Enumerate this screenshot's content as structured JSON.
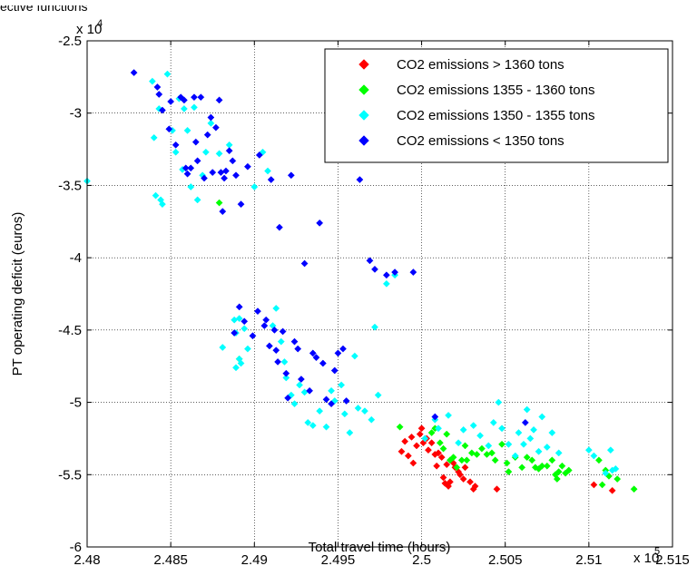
{
  "caption_fragment": "ective functions",
  "chart_data": {
    "type": "scatter",
    "title": "",
    "xlabel": "Total travel time (hours)",
    "ylabel": "PT operating deficit (euros)",
    "x_multiplier_label": "x 10",
    "x_multiplier_exp": "5",
    "y_multiplier_label": "x 10",
    "y_multiplier_exp": "4",
    "xlim": [
      2.48,
      2.515
    ],
    "ylim": [
      -6,
      -2.5
    ],
    "x_ticks": [
      2.48,
      2.485,
      2.49,
      2.495,
      2.5,
      2.505,
      2.51,
      2.515
    ],
    "x_tick_labels": [
      "2.48",
      "2.485",
      "2.49",
      "2.495",
      "2.5",
      "2.505",
      "2.51",
      "2.515"
    ],
    "y_ticks": [
      -6,
      -5.5,
      -5,
      -4.5,
      -4,
      -3.5,
      -3,
      -2.5
    ],
    "y_tick_labels": [
      "-6",
      "-5.5",
      "-5",
      "-4.5",
      "-4",
      "-3.5",
      "-3",
      "-2.5"
    ],
    "grid": true,
    "legend_position": "top-right",
    "series": [
      {
        "name": "CO2 emissions > 1360 tons",
        "color": "#ff0000",
        "points": [
          [
            2.4988,
            -5.34
          ],
          [
            2.499,
            -5.27
          ],
          [
            2.4992,
            -5.37
          ],
          [
            2.4994,
            -5.24
          ],
          [
            2.4995,
            -5.42
          ],
          [
            2.4997,
            -5.3
          ],
          [
            2.4999,
            -5.22
          ],
          [
            2.5,
            -5.18
          ],
          [
            2.5001,
            -5.28
          ],
          [
            2.5003,
            -5.25
          ],
          [
            2.5004,
            -5.33
          ],
          [
            2.5006,
            -5.28
          ],
          [
            2.5008,
            -5.36
          ],
          [
            2.5009,
            -5.44
          ],
          [
            2.501,
            -5.35
          ],
          [
            2.5012,
            -5.38
          ],
          [
            2.5013,
            -5.52
          ],
          [
            2.5014,
            -5.56
          ],
          [
            2.5015,
            -5.43
          ],
          [
            2.5016,
            -5.58
          ],
          [
            2.5017,
            -5.55
          ],
          [
            2.5019,
            -5.42
          ],
          [
            2.502,
            -5.45
          ],
          [
            2.5022,
            -5.48
          ],
          [
            2.5023,
            -5.5
          ],
          [
            2.5025,
            -5.53
          ],
          [
            2.5026,
            -5.45
          ],
          [
            2.5029,
            -5.55
          ],
          [
            2.5031,
            -5.6
          ],
          [
            2.5032,
            -5.58
          ],
          [
            2.5045,
            -5.6
          ],
          [
            2.5103,
            -5.57
          ],
          [
            2.5114,
            -5.61
          ]
        ]
      },
      {
        "name": "CO2 emissions 1355 - 1360 tons",
        "color": "#00ff00",
        "points": [
          [
            2.4879,
            -3.62
          ],
          [
            2.4891,
            -4.7
          ],
          [
            2.4987,
            -5.17
          ],
          [
            2.5006,
            -5.21
          ],
          [
            2.5008,
            -5.18
          ],
          [
            2.5011,
            -5.28
          ],
          [
            2.5013,
            -5.32
          ],
          [
            2.5015,
            -5.22
          ],
          [
            2.5017,
            -5.4
          ],
          [
            2.5019,
            -5.38
          ],
          [
            2.5021,
            -5.45
          ],
          [
            2.5024,
            -5.4
          ],
          [
            2.5026,
            -5.3
          ],
          [
            2.5027,
            -5.4
          ],
          [
            2.503,
            -5.35
          ],
          [
            2.5033,
            -5.36
          ],
          [
            2.5036,
            -5.32
          ],
          [
            2.5039,
            -5.36
          ],
          [
            2.5042,
            -5.35
          ],
          [
            2.5044,
            -5.4
          ],
          [
            2.5048,
            -5.29
          ],
          [
            2.5051,
            -5.42
          ],
          [
            2.5052,
            -5.48
          ],
          [
            2.5056,
            -5.38
          ],
          [
            2.506,
            -5.45
          ],
          [
            2.5063,
            -5.38
          ],
          [
            2.5066,
            -5.4
          ],
          [
            2.5068,
            -5.45
          ],
          [
            2.507,
            -5.46
          ],
          [
            2.5072,
            -5.44
          ],
          [
            2.5075,
            -5.44
          ],
          [
            2.5078,
            -5.4
          ],
          [
            2.508,
            -5.5
          ],
          [
            2.5081,
            -5.53
          ],
          [
            2.5082,
            -5.48
          ],
          [
            2.5084,
            -5.44
          ],
          [
            2.5086,
            -5.49
          ],
          [
            2.5088,
            -5.47
          ],
          [
            2.5106,
            -5.4
          ],
          [
            2.5108,
            -5.57
          ],
          [
            2.511,
            -5.47
          ],
          [
            2.5112,
            -5.51
          ],
          [
            2.5117,
            -5.53
          ],
          [
            2.5127,
            -5.6
          ]
        ]
      },
      {
        "name": "CO2 emissions 1350 - 1355 tons",
        "color": "#00ffff",
        "points": [
          [
            2.48,
            -3.47
          ],
          [
            2.4839,
            -2.78
          ],
          [
            2.484,
            -3.17
          ],
          [
            2.4841,
            -3.57
          ],
          [
            2.4843,
            -2.97
          ],
          [
            2.4844,
            -3.6
          ],
          [
            2.4845,
            -3.63
          ],
          [
            2.4848,
            -2.73
          ],
          [
            2.4851,
            -3.12
          ],
          [
            2.4853,
            -3.27
          ],
          [
            2.4855,
            -2.9
          ],
          [
            2.4857,
            -3.39
          ],
          [
            2.4858,
            -2.97
          ],
          [
            2.486,
            -3.12
          ],
          [
            2.4862,
            -3.51
          ],
          [
            2.4864,
            -2.96
          ],
          [
            2.4866,
            -3.6
          ],
          [
            2.4869,
            -3.43
          ],
          [
            2.4871,
            -3.27
          ],
          [
            2.4874,
            -3.07
          ],
          [
            2.4879,
            -3.28
          ],
          [
            2.4881,
            -4.62
          ],
          [
            2.4885,
            -3.22
          ],
          [
            2.4888,
            -4.43
          ],
          [
            2.4889,
            -4.52
          ],
          [
            2.4891,
            -4.42
          ],
          [
            2.4892,
            -4.73
          ],
          [
            2.4894,
            -4.49
          ],
          [
            2.4896,
            -4.63
          ],
          [
            2.49,
            -3.51
          ],
          [
            2.4905,
            -3.27
          ],
          [
            2.4908,
            -3.4
          ],
          [
            2.4911,
            -4.47
          ],
          [
            2.4913,
            -4.35
          ],
          [
            2.4916,
            -4.58
          ],
          [
            2.4918,
            -4.72
          ],
          [
            2.4919,
            -4.83
          ],
          [
            2.4922,
            -4.95
          ],
          [
            2.4924,
            -5.01
          ],
          [
            2.4927,
            -4.88
          ],
          [
            2.493,
            -4.93
          ],
          [
            2.4932,
            -5.14
          ],
          [
            2.4935,
            -5.16
          ],
          [
            2.4939,
            -5.06
          ],
          [
            2.4943,
            -5.17
          ],
          [
            2.4946,
            -4.92
          ],
          [
            2.4948,
            -4.99
          ],
          [
            2.4952,
            -4.88
          ],
          [
            2.4954,
            -5.08
          ],
          [
            2.4957,
            -5.21
          ],
          [
            2.496,
            -4.68
          ],
          [
            2.4962,
            -5.04
          ],
          [
            2.4966,
            -5.06
          ],
          [
            2.497,
            -5.12
          ],
          [
            2.4974,
            -4.95
          ],
          [
            2.4979,
            -4.18
          ],
          [
            2.4984,
            -4.12
          ],
          [
            2.5002,
            -5.25
          ],
          [
            2.5008,
            -5.12
          ],
          [
            2.501,
            -5.18
          ],
          [
            2.5016,
            -5.09
          ],
          [
            2.5022,
            -5.28
          ],
          [
            2.5025,
            -5.19
          ],
          [
            2.5031,
            -5.16
          ],
          [
            2.5035,
            -5.23
          ],
          [
            2.504,
            -5.3
          ],
          [
            2.5043,
            -5.14
          ],
          [
            2.5046,
            -5.0
          ],
          [
            2.5048,
            -5.18
          ],
          [
            2.5052,
            -5.29
          ],
          [
            2.5056,
            -5.37
          ],
          [
            2.5058,
            -5.21
          ],
          [
            2.5061,
            -5.29
          ],
          [
            2.5063,
            -5.05
          ],
          [
            2.5065,
            -5.25
          ],
          [
            2.5067,
            -5.19
          ],
          [
            2.507,
            -5.34
          ],
          [
            2.5072,
            -5.1
          ],
          [
            2.5075,
            -5.31
          ],
          [
            2.5078,
            -5.21
          ],
          [
            2.5082,
            -5.35
          ],
          [
            2.51,
            -5.33
          ],
          [
            2.5103,
            -5.37
          ],
          [
            2.511,
            -5.49
          ],
          [
            2.5113,
            -5.33
          ],
          [
            2.5114,
            -5.47
          ],
          [
            2.5116,
            -5.46
          ],
          [
            2.4972,
            -4.48
          ],
          [
            2.4889,
            -4.76
          ],
          [
            2.4891,
            -4.7
          ]
        ]
      },
      {
        "name": "CO2 emissions < 1350 tons",
        "color": "#0000ff",
        "points": [
          [
            2.4828,
            -2.72
          ],
          [
            2.4842,
            -2.82
          ],
          [
            2.4843,
            -2.87
          ],
          [
            2.4845,
            -2.98
          ],
          [
            2.4849,
            -3.11
          ],
          [
            2.485,
            -2.92
          ],
          [
            2.4853,
            -3.22
          ],
          [
            2.4856,
            -2.89
          ],
          [
            2.4858,
            -2.91
          ],
          [
            2.4859,
            -3.38
          ],
          [
            2.486,
            -3.42
          ],
          [
            2.4862,
            -3.38
          ],
          [
            2.4864,
            -2.89
          ],
          [
            2.4865,
            -3.2
          ],
          [
            2.4866,
            -3.33
          ],
          [
            2.4868,
            -2.89
          ],
          [
            2.487,
            -3.45
          ],
          [
            2.4872,
            -3.15
          ],
          [
            2.4874,
            -3.03
          ],
          [
            2.4875,
            -3.41
          ],
          [
            2.4877,
            -3.1
          ],
          [
            2.4879,
            -2.91
          ],
          [
            2.488,
            -3.41
          ],
          [
            2.4881,
            -3.68
          ],
          [
            2.4882,
            -3.45
          ],
          [
            2.4883,
            -3.4
          ],
          [
            2.4885,
            -3.26
          ],
          [
            2.4887,
            -3.33
          ],
          [
            2.4888,
            -4.52
          ],
          [
            2.4889,
            -3.43
          ],
          [
            2.4891,
            -4.34
          ],
          [
            2.4892,
            -3.63
          ],
          [
            2.4894,
            -4.44
          ],
          [
            2.4896,
            -3.37
          ],
          [
            2.4899,
            -4.54
          ],
          [
            2.4902,
            -4.37
          ],
          [
            2.4903,
            -3.29
          ],
          [
            2.4906,
            -4.47
          ],
          [
            2.4907,
            -4.43
          ],
          [
            2.4909,
            -4.61
          ],
          [
            2.491,
            -3.46
          ],
          [
            2.4912,
            -4.5
          ],
          [
            2.4913,
            -4.64
          ],
          [
            2.4914,
            -4.72
          ],
          [
            2.4915,
            -3.79
          ],
          [
            2.4917,
            -4.51
          ],
          [
            2.4919,
            -4.8
          ],
          [
            2.492,
            -4.97
          ],
          [
            2.4922,
            -3.43
          ],
          [
            2.4924,
            -4.58
          ],
          [
            2.4926,
            -4.63
          ],
          [
            2.4928,
            -4.84
          ],
          [
            2.493,
            -4.04
          ],
          [
            2.4933,
            -4.92
          ],
          [
            2.4935,
            -4.66
          ],
          [
            2.4937,
            -4.69
          ],
          [
            2.4939,
            -3.76
          ],
          [
            2.4941,
            -4.73
          ],
          [
            2.4943,
            -4.98
          ],
          [
            2.4946,
            -5.01
          ],
          [
            2.4948,
            -4.78
          ],
          [
            2.495,
            -4.66
          ],
          [
            2.4953,
            -4.63
          ],
          [
            2.4955,
            -4.99
          ],
          [
            2.4963,
            -3.46
          ],
          [
            2.4969,
            -4.02
          ],
          [
            2.4972,
            -4.08
          ],
          [
            2.4979,
            -4.12
          ],
          [
            2.4984,
            -4.1
          ],
          [
            2.4995,
            -4.1
          ],
          [
            2.5008,
            -5.1
          ],
          [
            2.5062,
            -5.14
          ]
        ]
      }
    ]
  }
}
